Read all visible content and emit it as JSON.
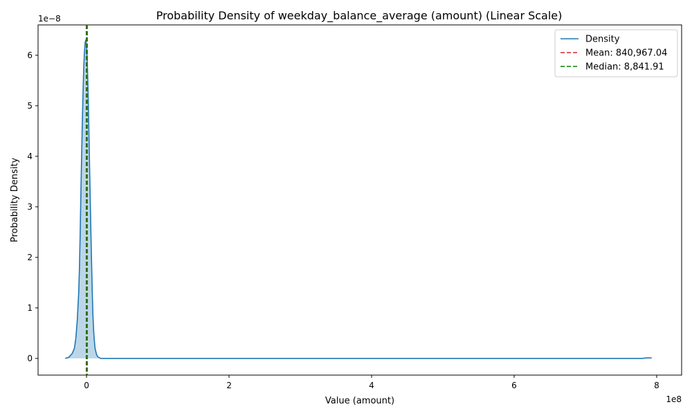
{
  "chart_data": {
    "type": "area",
    "title": "Probability Density of weekday_balance_average (amount) (Linear Scale)",
    "xlabel": "Value (amount)",
    "ylabel": "Probability Density",
    "x_offset_label": "1e8",
    "y_offset_label": "1e−8",
    "xlim": [
      -0.68,
      8.35
    ],
    "ylim": [
      -0.33,
      6.6
    ],
    "x_scale_multiplier": 100000000.0,
    "y_scale_multiplier": 1e-08,
    "x_ticks": [
      0,
      2,
      4,
      6,
      8
    ],
    "x_tick_labels": [
      "0",
      "2",
      "4",
      "6",
      "8"
    ],
    "y_ticks": [
      0,
      1,
      2,
      3,
      4,
      5,
      6
    ],
    "y_tick_labels": [
      "0",
      "1",
      "2",
      "3",
      "4",
      "5",
      "6"
    ],
    "grid": false,
    "legend_position": "top-right",
    "series": [
      {
        "name": "Density",
        "color": "#1f77b4",
        "fill_color": "#1f77b4",
        "fill_opacity": 0.3,
        "x": [
          -0.3,
          -0.25,
          -0.2,
          -0.17,
          -0.15,
          -0.13,
          -0.11,
          -0.1,
          -0.09,
          -0.08,
          -0.07,
          -0.06,
          -0.05,
          -0.04,
          -0.03,
          -0.02,
          -0.01,
          0.0,
          0.01,
          0.02,
          0.03,
          0.04,
          0.05,
          0.06,
          0.07,
          0.08,
          0.09,
          0.1,
          0.11,
          0.12,
          0.14,
          0.16,
          0.2,
          0.25,
          0.3,
          0.4,
          1.0,
          2.0,
          4.0,
          6.0,
          7.8,
          7.85,
          7.9,
          7.93
        ],
        "y": [
          0.0,
          0.02,
          0.1,
          0.2,
          0.4,
          0.75,
          1.3,
          1.75,
          2.4,
          3.2,
          3.9,
          4.6,
          5.2,
          5.7,
          6.05,
          6.25,
          6.3,
          6.2,
          5.9,
          5.4,
          4.75,
          4.0,
          3.3,
          2.6,
          1.95,
          1.35,
          0.85,
          0.55,
          0.35,
          0.2,
          0.08,
          0.03,
          0.0,
          0.0,
          0.0,
          0.0,
          0.0,
          0.0,
          0.0,
          0.0,
          0.0,
          0.01,
          0.01,
          0.01
        ]
      }
    ],
    "reference_lines": [
      {
        "name": "Mean: 840,967.04",
        "x": 0.0084,
        "color": "#d62728",
        "style": "dashed"
      },
      {
        "name": "Median: 8,841.91",
        "x": 0.0001,
        "color": "#008000",
        "style": "dashed"
      }
    ]
  }
}
